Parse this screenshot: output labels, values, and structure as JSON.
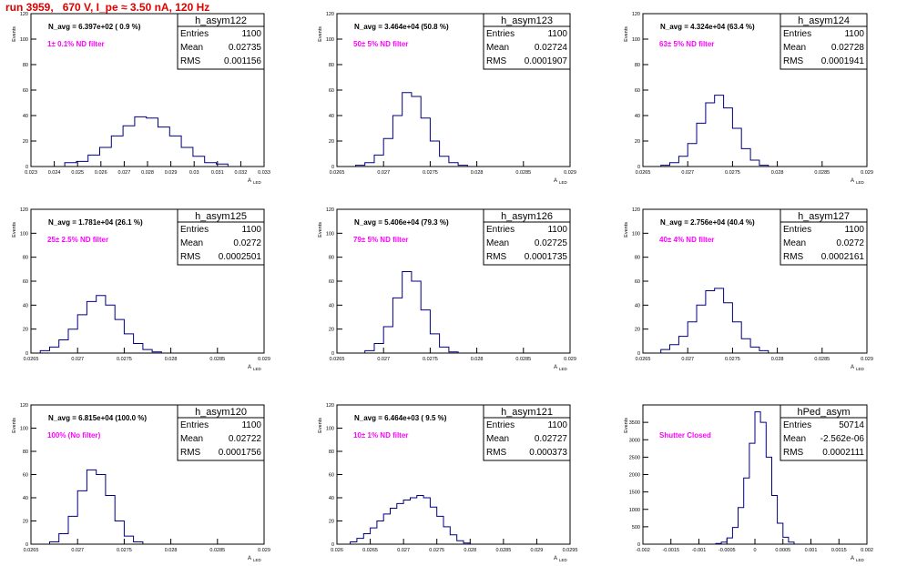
{
  "page_title": "run 3959,   670 V, I_pe ≈ 3.50 nA, 120 Hz",
  "y_axis_title": "Events",
  "x_axis_title": "A",
  "x_axis_subscript": "LED",
  "stats_labels": {
    "entries": "Entries",
    "mean": "Mean",
    "rms": "RMS"
  },
  "colors": {
    "title": "#e00000",
    "histogram": "#000080",
    "annotation": "#ff00ff",
    "frame": "#000000"
  },
  "chart_data": [
    {
      "type": "histogram",
      "hist_name": "h_asym122",
      "n_avg_label": "N_avg = 6.397e+02 ( 0.9 %)",
      "filter_label": "1± 0.1% ND filter",
      "entries": "1100",
      "mean": "0.02735",
      "rms": "0.001156",
      "xlim": [
        0.023,
        0.033
      ],
      "ylim": [
        0,
        120
      ],
      "x_ticks": [
        "0.023",
        "0.024",
        "0.025",
        "0.026",
        "0.027",
        "0.028",
        "0.029",
        "0.03",
        "0.031",
        "0.032",
        "0.033"
      ],
      "y_ticks": [
        "0",
        "20",
        "40",
        "60",
        "80",
        "100",
        "120"
      ],
      "x": [
        0.0247,
        0.0252,
        0.0257,
        0.0262,
        0.0267,
        0.0272,
        0.0277,
        0.0282,
        0.0287,
        0.0292,
        0.0297,
        0.0302,
        0.0307,
        0.0312
      ],
      "y": [
        3,
        4,
        9,
        15,
        24,
        32,
        39,
        38,
        31,
        24,
        15,
        8,
        3,
        2
      ]
    },
    {
      "type": "histogram",
      "hist_name": "h_asym123",
      "n_avg_label": "N_avg = 3.464e+04 (50.8 %)",
      "filter_label": "50± 5% ND filter",
      "entries": "1100",
      "mean": "0.02724",
      "rms": "0.0001907",
      "xlim": [
        0.0265,
        0.029
      ],
      "ylim": [
        0,
        120
      ],
      "x_ticks": [
        "0.0265",
        "0.027",
        "0.0275",
        "0.028",
        "0.0285",
        "0.029"
      ],
      "y_ticks": [
        "0",
        "20",
        "40",
        "60",
        "80",
        "100",
        "120"
      ],
      "x": [
        0.02675,
        0.02685,
        0.02695,
        0.02705,
        0.02715,
        0.02725,
        0.02735,
        0.02745,
        0.02755,
        0.02765,
        0.02775,
        0.02785
      ],
      "y": [
        1,
        3,
        9,
        22,
        40,
        58,
        55,
        38,
        20,
        8,
        3,
        1
      ]
    },
    {
      "type": "histogram",
      "hist_name": "h_asym124",
      "n_avg_label": "N_avg = 4.324e+04 (63.4 %)",
      "filter_label": "63± 5% ND filter",
      "entries": "1100",
      "mean": "0.02728",
      "rms": "0.0001941",
      "xlim": [
        0.0265,
        0.029
      ],
      "ylim": [
        0,
        120
      ],
      "x_ticks": [
        "0.0265",
        "0.027",
        "0.0275",
        "0.028",
        "0.0285",
        "0.029"
      ],
      "y_ticks": [
        "0",
        "20",
        "40",
        "60",
        "80",
        "100",
        "120"
      ],
      "x": [
        0.02675,
        0.02685,
        0.02695,
        0.02705,
        0.02715,
        0.02725,
        0.02735,
        0.02745,
        0.02755,
        0.02765,
        0.02775,
        0.02785
      ],
      "y": [
        1,
        3,
        8,
        18,
        34,
        50,
        56,
        46,
        30,
        14,
        5,
        1
      ]
    },
    {
      "type": "histogram",
      "hist_name": "h_asym125",
      "n_avg_label": "N_avg = 1.781e+04 (26.1 %)",
      "filter_label": "25± 2.5% ND filter",
      "entries": "1100",
      "mean": "0.0272",
      "rms": "0.0002501",
      "xlim": [
        0.0265,
        0.029
      ],
      "ylim": [
        0,
        120
      ],
      "x_ticks": [
        "0.0265",
        "0.027",
        "0.0275",
        "0.028",
        "0.0285",
        "0.029"
      ],
      "y_ticks": [
        "0",
        "20",
        "40",
        "60",
        "80",
        "100",
        "120"
      ],
      "x": [
        0.02665,
        0.02675,
        0.02685,
        0.02695,
        0.02705,
        0.02715,
        0.02725,
        0.02735,
        0.02745,
        0.02755,
        0.02765,
        0.02775,
        0.02785
      ],
      "y": [
        2,
        5,
        11,
        20,
        32,
        43,
        48,
        40,
        28,
        16,
        8,
        3,
        1
      ]
    },
    {
      "type": "histogram",
      "hist_name": "h_asym126",
      "n_avg_label": "N_avg = 5.406e+04 (79.3 %)",
      "filter_label": "79± 5% ND filter",
      "entries": "1100",
      "mean": "0.02725",
      "rms": "0.0001735",
      "xlim": [
        0.0265,
        0.029
      ],
      "ylim": [
        0,
        120
      ],
      "x_ticks": [
        "0.0265",
        "0.027",
        "0.0275",
        "0.028",
        "0.0285",
        "0.029"
      ],
      "y_ticks": [
        "0",
        "20",
        "40",
        "60",
        "80",
        "100",
        "120"
      ],
      "x": [
        0.02685,
        0.02695,
        0.02705,
        0.02715,
        0.02725,
        0.02735,
        0.02745,
        0.02755,
        0.02765,
        0.02775
      ],
      "y": [
        2,
        8,
        22,
        46,
        68,
        60,
        36,
        16,
        5,
        1
      ]
    },
    {
      "type": "histogram",
      "hist_name": "h_asym127",
      "n_avg_label": "N_avg = 2.756e+04 (40.4 %)",
      "filter_label": "40± 4% ND filter",
      "entries": "1100",
      "mean": "0.0272",
      "rms": "0.0002161",
      "xlim": [
        0.0265,
        0.029
      ],
      "ylim": [
        0,
        120
      ],
      "x_ticks": [
        "0.0265",
        "0.027",
        "0.0275",
        "0.028",
        "0.0285",
        "0.029"
      ],
      "y_ticks": [
        "0",
        "20",
        "40",
        "60",
        "80",
        "100",
        "120"
      ],
      "x": [
        0.02675,
        0.02685,
        0.02695,
        0.02705,
        0.02715,
        0.02725,
        0.02735,
        0.02745,
        0.02755,
        0.02765,
        0.02775,
        0.02785
      ],
      "y": [
        3,
        7,
        14,
        26,
        40,
        52,
        54,
        42,
        26,
        12,
        5,
        2
      ]
    },
    {
      "type": "histogram",
      "hist_name": "h_asym120",
      "n_avg_label": "N_avg = 6.815e+04 (100.0 %)",
      "filter_label": "100% (No filter)",
      "entries": "1100",
      "mean": "0.02722",
      "rms": "0.0001756",
      "xlim": [
        0.0265,
        0.029
      ],
      "ylim": [
        0,
        120
      ],
      "x_ticks": [
        "0.0265",
        "0.027",
        "0.0275",
        "0.028",
        "0.0285",
        "0.029"
      ],
      "y_ticks": [
        "0",
        "20",
        "40",
        "60",
        "80",
        "100",
        "120"
      ],
      "x": [
        0.02675,
        0.02685,
        0.02695,
        0.02705,
        0.02715,
        0.02725,
        0.02735,
        0.02745,
        0.02755,
        0.02765
      ],
      "y": [
        2,
        9,
        24,
        46,
        64,
        60,
        42,
        20,
        7,
        2
      ]
    },
    {
      "type": "histogram",
      "hist_name": "h_asym121",
      "n_avg_label": "N_avg = 6.464e+03 ( 9.5 %)",
      "filter_label": "10± 1% ND filter",
      "entries": "1100",
      "mean": "0.02727",
      "rms": "0.000373",
      "xlim": [
        0.026,
        0.0295
      ],
      "ylim": [
        0,
        120
      ],
      "x_ticks": [
        "0.026",
        "0.0265",
        "0.027",
        "0.0275",
        "0.028",
        "0.0285",
        "0.029",
        "0.0295"
      ],
      "y_ticks": [
        "0",
        "20",
        "40",
        "60",
        "80",
        "100",
        "120"
      ],
      "x": [
        0.02625,
        0.02635,
        0.02645,
        0.02655,
        0.02665,
        0.02675,
        0.02685,
        0.02695,
        0.02705,
        0.02715,
        0.02725,
        0.02735,
        0.02745,
        0.02755,
        0.02765,
        0.02775,
        0.02785,
        0.02795
      ],
      "y": [
        2,
        5,
        9,
        14,
        20,
        26,
        31,
        35,
        38,
        40,
        42,
        40,
        32,
        24,
        15,
        8,
        3,
        1
      ]
    },
    {
      "type": "histogram",
      "hist_name": "hPed_asym",
      "n_avg_label": "",
      "filter_label": "Shutter Closed",
      "entries": "50714",
      "mean": "-2.562e-06",
      "rms": "0.0002111",
      "xlim": [
        -0.002,
        0.002
      ],
      "ylim": [
        0,
        4000
      ],
      "x_ticks": [
        "-0.002",
        "-0.0015",
        "-0.001",
        "-0.0005",
        "0",
        "0.0005",
        "0.001",
        "0.0015",
        "0.002"
      ],
      "y_ticks": [
        "0",
        "500",
        "1000",
        "1500",
        "2000",
        "2500",
        "3000",
        "3500"
      ],
      "x": [
        -0.00065,
        -0.00055,
        -0.00045,
        -0.00035,
        -0.00025,
        -0.00015,
        -5e-05,
        5e-05,
        0.00015,
        0.00025,
        0.00035,
        0.00045,
        0.00055,
        0.00065
      ],
      "y": [
        20,
        60,
        180,
        480,
        1050,
        1900,
        2900,
        3800,
        3500,
        2500,
        1400,
        600,
        200,
        60
      ]
    }
  ]
}
